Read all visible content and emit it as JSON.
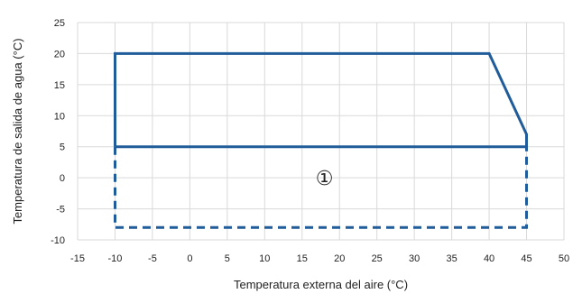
{
  "chart_data": {
    "type": "line",
    "xlabel": "Temperatura externa del aire (°C)",
    "ylabel": "Temperatura de salida de agua (°C)",
    "xlim": [
      -15,
      50
    ],
    "ylim": [
      -10,
      25
    ],
    "xticks": [
      -15,
      -10,
      -5,
      0,
      5,
      10,
      15,
      20,
      25,
      30,
      35,
      40,
      45,
      50
    ],
    "yticks": [
      -10,
      -5,
      0,
      5,
      10,
      15,
      20,
      25
    ],
    "grid": true,
    "series": [
      {
        "style": "solid",
        "color": "#1f5c99",
        "points": [
          [
            -10,
            5
          ],
          [
            -10,
            20
          ],
          [
            40,
            20
          ],
          [
            45,
            7
          ],
          [
            45,
            5
          ],
          [
            -10,
            5
          ]
        ]
      },
      {
        "style": "dashed",
        "color": "#1f5c99",
        "points": [
          [
            -10,
            5
          ],
          [
            -10,
            -8
          ],
          [
            45,
            -8
          ],
          [
            45,
            5
          ]
        ]
      }
    ],
    "annotations": [
      {
        "text": "①",
        "x": 18,
        "y": 0
      }
    ]
  }
}
